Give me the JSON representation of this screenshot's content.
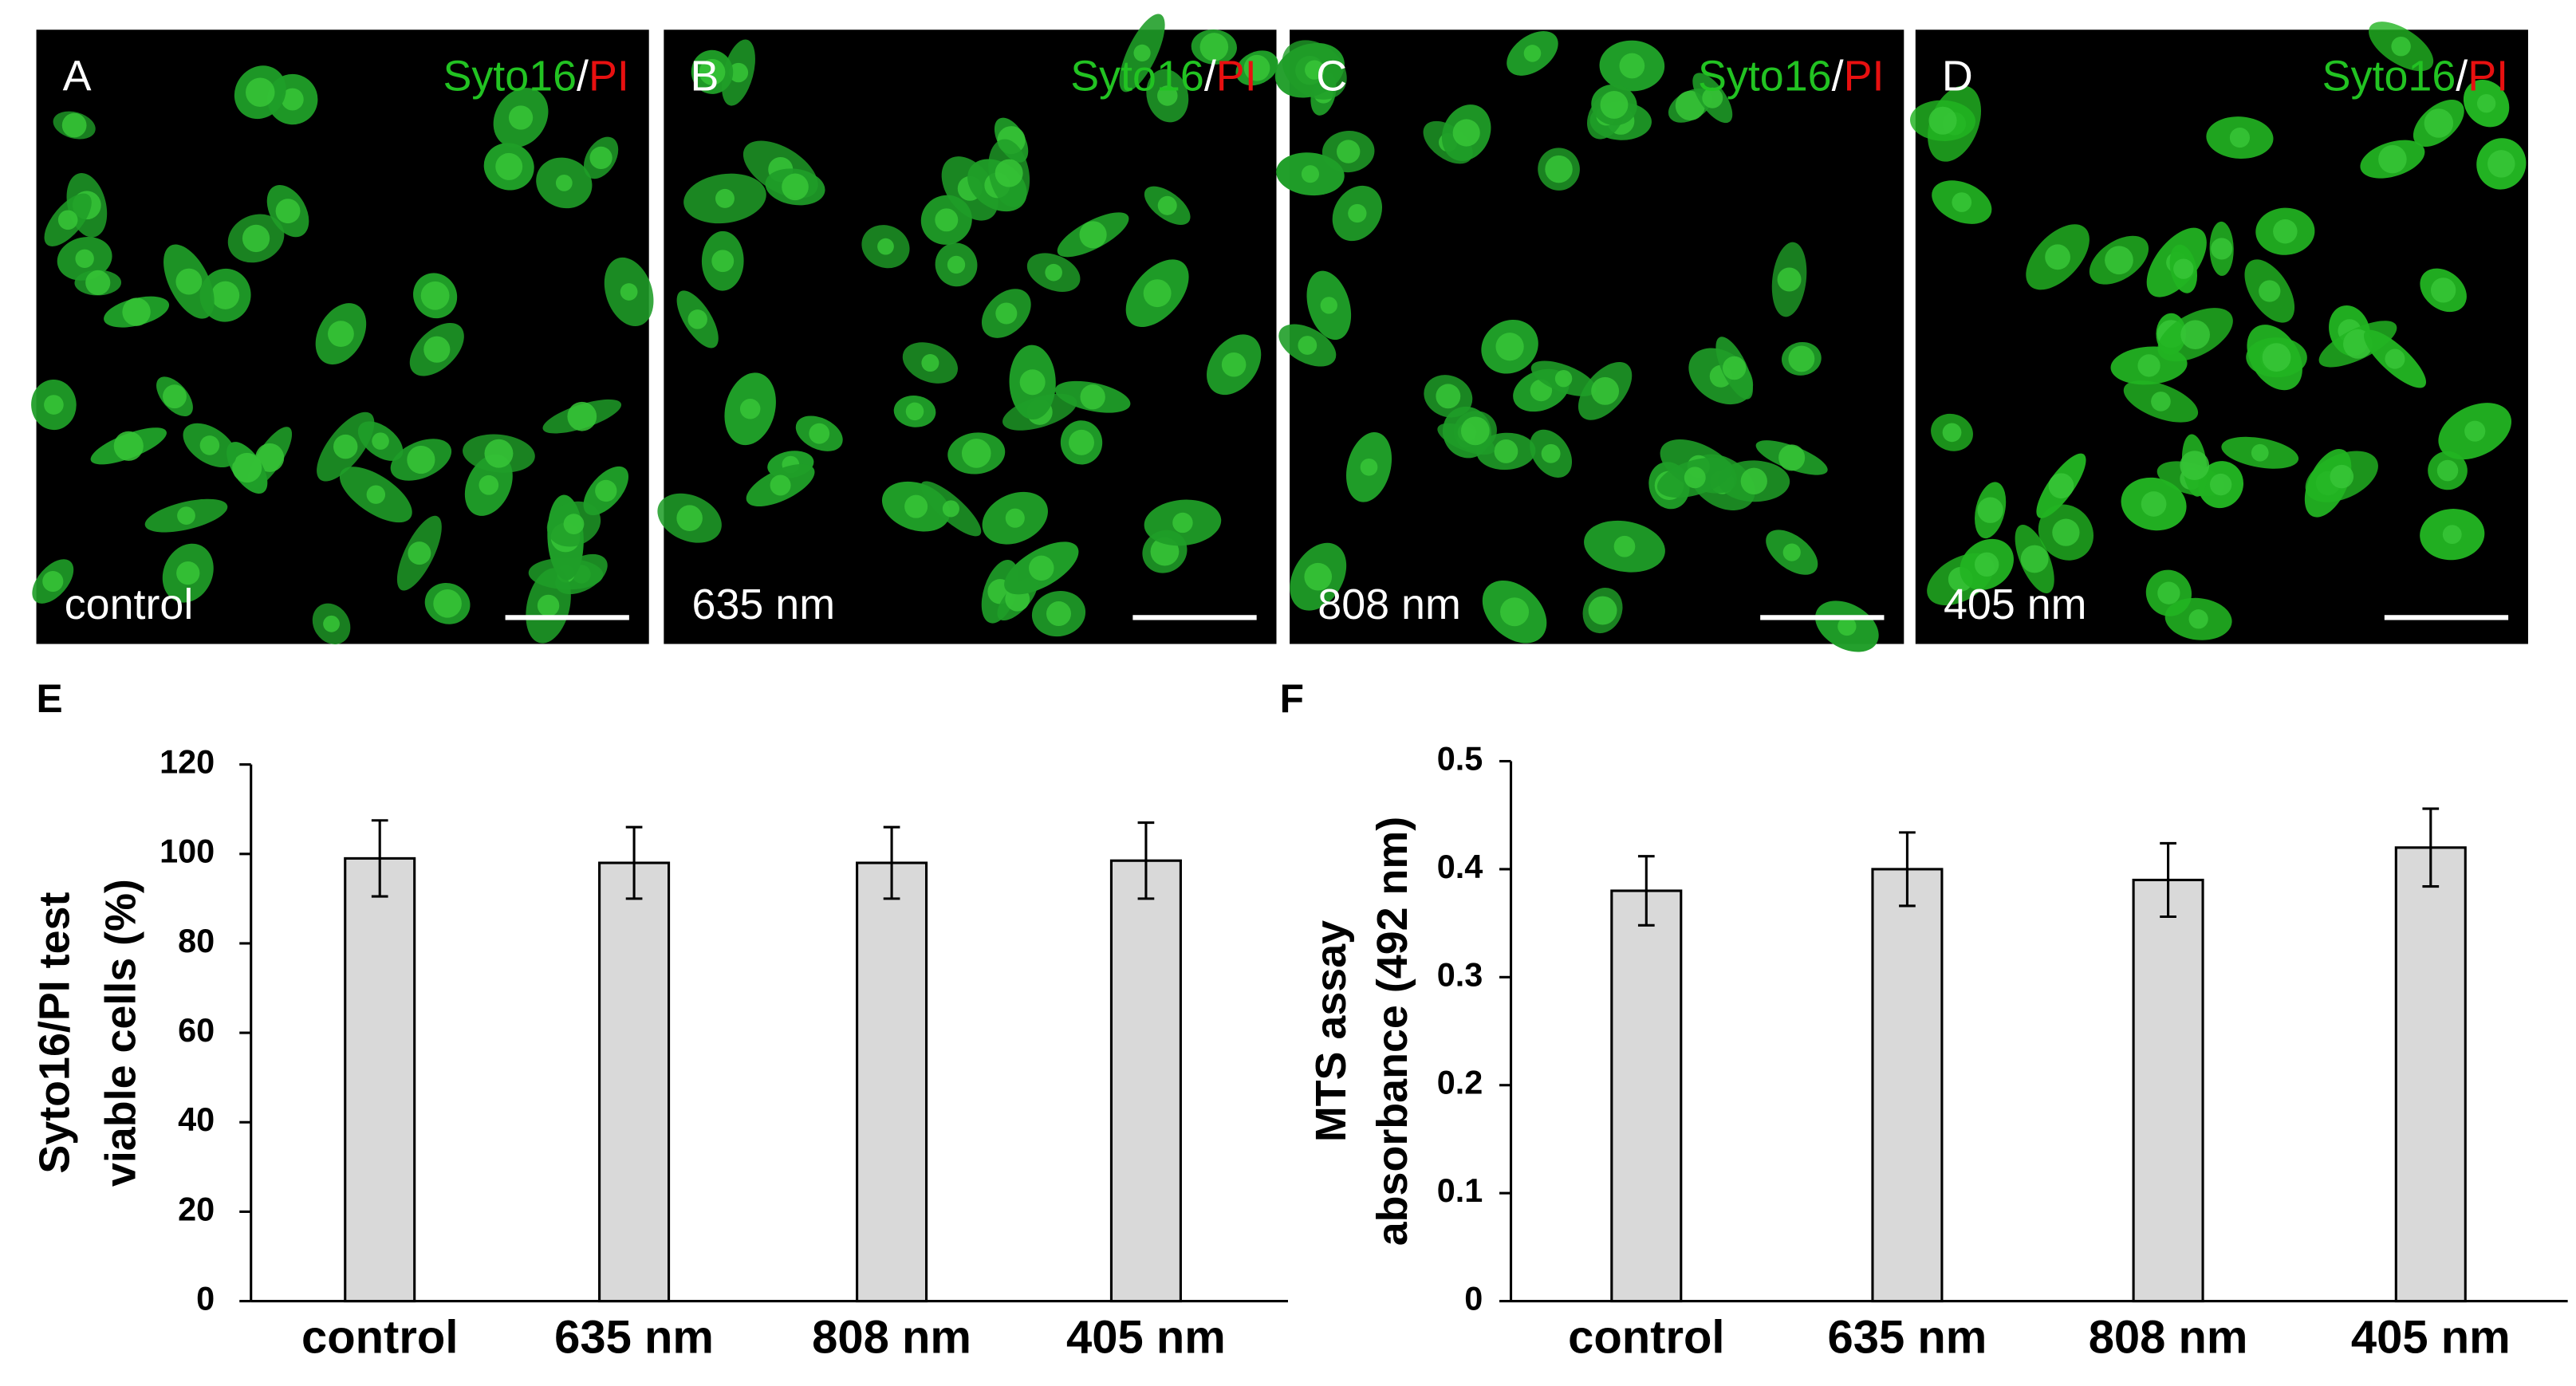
{
  "panels": [
    {
      "letter": "A",
      "stain_green": "Syto16",
      "separator": "/",
      "stain_red": "PI",
      "condition": "control"
    },
    {
      "letter": "B",
      "stain_green": "Syto16",
      "separator": "/",
      "stain_red": "PI",
      "condition": "635 nm"
    },
    {
      "letter": "C",
      "stain_green": "Syto16",
      "separator": "/",
      "stain_red": "PI",
      "condition": "808 nm"
    },
    {
      "letter": "D",
      "stain_green": "Syto16",
      "separator": "/",
      "stain_red": "PI",
      "condition": "405 nm"
    }
  ],
  "chart_data": [
    {
      "type": "bar",
      "label": "E",
      "ylabel": [
        "Syto16/PI test",
        "viable cells (%)"
      ],
      "categories": [
        "control",
        "635 nm",
        "808 nm",
        "405 nm"
      ],
      "values": [
        99,
        98,
        98,
        98.5
      ],
      "errors": [
        8.5,
        8,
        8,
        8.5
      ],
      "color": "#d9d9d9",
      "ylim": [
        0,
        120
      ],
      "yticks": [
        0,
        20,
        40,
        60,
        80,
        100,
        120
      ]
    },
    {
      "type": "bar",
      "label": "F",
      "ylabel": [
        "MTS assay",
        "absorbance (492 nm)"
      ],
      "categories": [
        "control",
        "635 nm",
        "808 nm",
        "405 nm"
      ],
      "values": [
        0.38,
        0.4,
        0.39,
        0.42
      ],
      "errors": [
        0.032,
        0.034,
        0.034,
        0.036
      ],
      "color": "#d9d9d9",
      "ylim": [
        0,
        0.5
      ],
      "yticks": [
        0,
        0.1,
        0.2,
        0.3,
        0.4,
        0.5
      ]
    }
  ]
}
